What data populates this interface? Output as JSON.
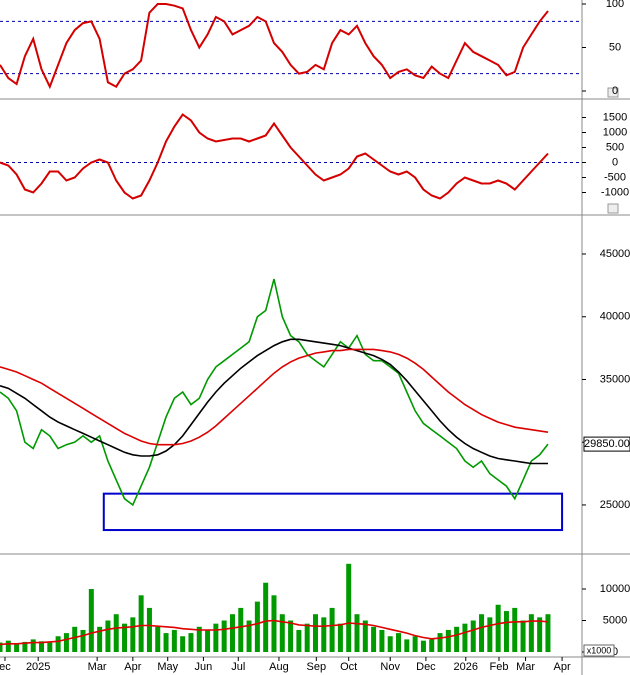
{
  "chart_data": [
    {
      "type": "line",
      "ylim": [
        0,
        100
      ],
      "yticks": [
        0,
        50,
        100
      ],
      "ref_lines": [
        20,
        80
      ],
      "ref_color": "#0000aa",
      "series": [
        {
          "color": "#d40000",
          "values": [
            30,
            15,
            8,
            40,
            60,
            25,
            5,
            30,
            55,
            70,
            78,
            80,
            60,
            10,
            5,
            20,
            25,
            35,
            90,
            100,
            100,
            98,
            95,
            70,
            50,
            65,
            85,
            80,
            65,
            70,
            75,
            85,
            80,
            55,
            45,
            30,
            20,
            22,
            30,
            25,
            55,
            70,
            65,
            75,
            55,
            40,
            30,
            15,
            22,
            25,
            18,
            15,
            28,
            20,
            15,
            35,
            55,
            45,
            40,
            35,
            30,
            18,
            22,
            50,
            65,
            80,
            92
          ]
        }
      ]
    },
    {
      "type": "line",
      "ylim": [
        -1650,
        1950
      ],
      "yticks": [
        -1000,
        -500,
        0,
        500,
        1000,
        1500
      ],
      "ref_lines": [
        0
      ],
      "ref_color": "#0000aa",
      "series": [
        {
          "color": "#d40000",
          "values": [
            0,
            -100,
            -400,
            -900,
            -1000,
            -700,
            -300,
            -300,
            -600,
            -500,
            -200,
            0,
            100,
            0,
            -600,
            -1000,
            -1200,
            -1100,
            -600,
            0,
            700,
            1200,
            1600,
            1400,
            1000,
            800,
            700,
            750,
            800,
            800,
            700,
            800,
            900,
            1300,
            900,
            500,
            200,
            -100,
            -400,
            -600,
            -500,
            -400,
            -200,
            200,
            300,
            100,
            -100,
            -300,
            -400,
            -300,
            -500,
            -900,
            -1100,
            -1200,
            -1000,
            -700,
            -500,
            -600,
            -700,
            -700,
            -600,
            -700,
            -900,
            -600,
            -300,
            0,
            300
          ]
        }
      ]
    },
    {
      "type": "line",
      "ylim": [
        21250,
        47870
      ],
      "yticks": [
        25000,
        30000,
        35000,
        40000,
        45000
      ],
      "series": [
        {
          "color": "#009900",
          "values": [
            34000,
            33500,
            32500,
            30000,
            29500,
            31000,
            30500,
            29500,
            29800,
            30000,
            30500,
            30000,
            30500,
            28500,
            27000,
            25500,
            25000,
            26500,
            28000,
            30000,
            32000,
            33500,
            34000,
            33000,
            33500,
            35000,
            36000,
            36500,
            37000,
            37500,
            38000,
            40000,
            40500,
            43000,
            40000,
            38500,
            38000,
            37000,
            36500,
            36000,
            37000,
            38000,
            37500,
            38500,
            37000,
            36500,
            36500,
            36000,
            35500,
            34000,
            32500,
            31500,
            31000,
            30500,
            30000,
            29500,
            28500,
            28000,
            28500,
            27500,
            27000,
            26500,
            25500,
            27000,
            28500,
            29000,
            29850
          ]
        },
        {
          "color": "#000000",
          "values": [
            34500,
            34300,
            33900,
            33500,
            33000,
            32500,
            32000,
            31600,
            31300,
            31000,
            30700,
            30400,
            30100,
            29800,
            29500,
            29200,
            29000,
            28900,
            28900,
            29000,
            29300,
            29800,
            30500,
            31400,
            32300,
            33200,
            34000,
            34700,
            35300,
            35900,
            36400,
            36900,
            37300,
            37700,
            38000,
            38200,
            38200,
            38100,
            38000,
            37900,
            37800,
            37700,
            37500,
            37300,
            37100,
            36900,
            36600,
            36200,
            35600,
            34900,
            34100,
            33300,
            32500,
            31700,
            31000,
            30400,
            29900,
            29500,
            29200,
            28900,
            28700,
            28600,
            28500,
            28400,
            28300,
            28300,
            28300
          ]
        },
        {
          "color": "#dd0000",
          "values": [
            36000,
            35800,
            35600,
            35300,
            35000,
            34700,
            34300,
            33900,
            33500,
            33100,
            32700,
            32300,
            31900,
            31500,
            31100,
            30700,
            30400,
            30100,
            29900,
            29800,
            29800,
            29800,
            29900,
            30100,
            30400,
            30800,
            31300,
            31900,
            32500,
            33100,
            33700,
            34300,
            34900,
            35500,
            36000,
            36400,
            36700,
            36900,
            37100,
            37200,
            37300,
            37300,
            37400,
            37400,
            37400,
            37400,
            37300,
            37200,
            37000,
            36700,
            36300,
            35800,
            35200,
            34600,
            34000,
            33500,
            33000,
            32600,
            32200,
            31900,
            31600,
            31400,
            31200,
            31100,
            31000,
            30900,
            30800
          ]
        }
      ],
      "last_price": {
        "value": 29850,
        "label": "29850.00"
      },
      "highlight_box": {
        "x": [
          12.5,
          67.7
        ],
        "y": [
          23000,
          25900
        ],
        "color": "#0000cc"
      }
    },
    {
      "type": "bar",
      "ylim": [
        0,
        15400
      ],
      "yticks": [
        0,
        5000,
        10000
      ],
      "unit_label": "x1000",
      "color": "#009900",
      "values": [
        1500,
        1800,
        1200,
        1600,
        2000,
        1700,
        1500,
        2500,
        3000,
        4000,
        3500,
        10000,
        4000,
        5000,
        6000,
        4500,
        5500,
        9000,
        7000,
        4000,
        3000,
        3500,
        2500,
        3000,
        4000,
        3500,
        4500,
        5000,
        6000,
        7000,
        5000,
        8000,
        11000,
        9000,
        6000,
        5000,
        3500,
        4500,
        6000,
        5500,
        7000,
        4500,
        14000,
        6000,
        5000,
        4000,
        3500,
        2500,
        3000,
        2000,
        2500,
        1800,
        2000,
        3000,
        3500,
        4000,
        4500,
        5000,
        6000,
        5500,
        7500,
        6500,
        7000,
        5000,
        6000,
        5500,
        6000
      ],
      "series": [
        {
          "color": "#e00000",
          "values": [
            1200,
            1300,
            1300,
            1400,
            1500,
            1500,
            1600,
            1700,
            2000,
            2300,
            2600,
            3000,
            3300,
            3600,
            3800,
            3900,
            4000,
            4200,
            4200,
            4100,
            4000,
            3900,
            3700,
            3600,
            3500,
            3500,
            3500,
            3600,
            3800,
            4000,
            4200,
            4500,
            4900,
            5000,
            4800,
            4600,
            4300,
            4200,
            4100,
            4100,
            4200,
            4300,
            4600,
            4500,
            4400,
            4200,
            3900,
            3600,
            3300,
            3000,
            2600,
            2300,
            2100,
            2200,
            2400,
            2700,
            3100,
            3500,
            3900,
            4200,
            4500,
            4700,
            4800,
            4800,
            4900,
            4900,
            4800
          ]
        }
      ],
      "xlim": [
        0,
        70.1
      ],
      "xticks": [
        {
          "value": 0.6,
          "label": "ec"
        },
        {
          "value": 4.6,
          "label": "2025"
        },
        {
          "value": 11.7,
          "label": "Mar"
        },
        {
          "value": 16,
          "label": "Apr"
        },
        {
          "value": 20.2,
          "label": "May"
        },
        {
          "value": 24.5,
          "label": "Jun"
        },
        {
          "value": 28.7,
          "label": "Jul"
        },
        {
          "value": 33.6,
          "label": "Aug"
        },
        {
          "value": 38.1,
          "label": "Sep"
        },
        {
          "value": 42,
          "label": "Oct"
        },
        {
          "value": 47,
          "label": "Nov"
        },
        {
          "value": 51.3,
          "label": "Dec"
        },
        {
          "value": 56.1,
          "label": "2026"
        },
        {
          "value": 60.1,
          "label": "Feb"
        },
        {
          "value": 63.3,
          "label": "Mar"
        },
        {
          "value": 67.7,
          "label": "Apr"
        }
      ]
    }
  ]
}
